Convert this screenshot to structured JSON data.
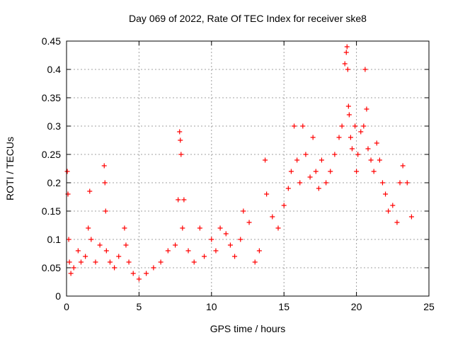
{
  "chart_data": {
    "type": "scatter",
    "title": "Day 069 of 2022, Rate Of TEC Index for receiver ske8",
    "xlabel": "GPS time / hours",
    "ylabel": "ROTI / TECUs",
    "xlim": [
      0,
      25
    ],
    "ylim": [
      0,
      0.45
    ],
    "xticks": [
      "0",
      "5",
      "10",
      "15",
      "20",
      "25"
    ],
    "yticks": [
      "0",
      "0.05",
      "0.1",
      "0.15",
      "0.2",
      "0.25",
      "0.3",
      "0.35",
      "0.4",
      "0.45"
    ],
    "grid": true,
    "marker": "+",
    "color": "#ff0000",
    "series": [
      {
        "x": [
          0.05,
          0.1,
          0.15,
          0.2,
          0.3,
          0.5,
          0.8,
          1.0,
          1.3,
          1.5,
          1.6,
          1.7,
          2.0,
          2.3,
          2.6,
          2.65,
          2.7,
          2.75,
          3.0,
          3.3,
          3.6,
          4.0,
          4.1,
          4.3,
          4.6,
          5.0,
          5.5,
          6.0,
          6.5,
          7.0,
          7.5,
          7.7,
          7.8,
          7.85,
          7.9,
          8.0,
          8.1,
          8.4,
          8.8,
          9.2,
          9.5,
          10.0,
          10.3,
          10.6,
          11.0,
          11.3,
          11.6,
          12.0,
          12.2,
          12.6,
          13.0,
          13.3,
          13.7,
          13.8,
          14.2,
          14.6,
          15.0,
          15.3,
          15.5,
          15.7,
          15.9,
          16.1,
          16.3,
          16.5,
          16.8,
          17.0,
          17.2,
          17.4,
          17.6,
          17.9,
          18.2,
          18.5,
          18.8,
          19.0,
          19.2,
          19.3,
          19.35,
          19.4,
          19.45,
          19.5,
          19.6,
          19.7,
          19.9,
          20.0,
          20.1,
          20.3,
          20.5,
          20.6,
          20.7,
          20.8,
          21.0,
          21.2,
          21.4,
          21.6,
          21.8,
          22.0,
          22.2,
          22.5,
          22.8,
          23.0,
          23.2,
          23.5,
          23.8
        ],
        "y": [
          0.22,
          0.18,
          0.1,
          0.06,
          0.04,
          0.05,
          0.08,
          0.06,
          0.07,
          0.12,
          0.185,
          0.1,
          0.06,
          0.09,
          0.23,
          0.2,
          0.15,
          0.08,
          0.06,
          0.05,
          0.07,
          0.12,
          0.09,
          0.06,
          0.04,
          0.03,
          0.04,
          0.05,
          0.06,
          0.08,
          0.09,
          0.17,
          0.29,
          0.275,
          0.25,
          0.12,
          0.17,
          0.08,
          0.06,
          0.12,
          0.07,
          0.1,
          0.08,
          0.12,
          0.11,
          0.09,
          0.07,
          0.1,
          0.15,
          0.13,
          0.06,
          0.08,
          0.24,
          0.18,
          0.14,
          0.12,
          0.16,
          0.19,
          0.22,
          0.3,
          0.24,
          0.2,
          0.3,
          0.25,
          0.21,
          0.28,
          0.22,
          0.19,
          0.24,
          0.2,
          0.22,
          0.25,
          0.28,
          0.3,
          0.41,
          0.43,
          0.44,
          0.4,
          0.335,
          0.32,
          0.28,
          0.26,
          0.3,
          0.22,
          0.25,
          0.29,
          0.3,
          0.4,
          0.33,
          0.26,
          0.24,
          0.22,
          0.27,
          0.24,
          0.2,
          0.18,
          0.15,
          0.16,
          0.13,
          0.2,
          0.23,
          0.2,
          0.14
        ]
      }
    ]
  }
}
